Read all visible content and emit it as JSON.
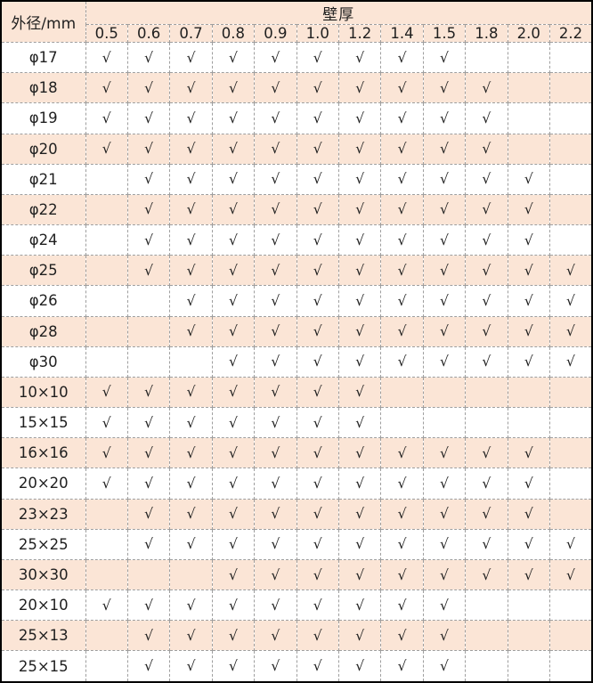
{
  "table": {
    "corner_label": "外径/mm",
    "group_label": "壁厚",
    "check_glyph": "√",
    "thickness_columns": [
      "0.5",
      "0.6",
      "0.7",
      "0.8",
      "0.9",
      "1.0",
      "1.2",
      "1.4",
      "1.5",
      "1.8",
      "2.0",
      "2.2"
    ],
    "rows": [
      {
        "label": "φ17",
        "checks": [
          1,
          1,
          1,
          1,
          1,
          1,
          1,
          1,
          1,
          0,
          0,
          0
        ]
      },
      {
        "label": "φ18",
        "checks": [
          1,
          1,
          1,
          1,
          1,
          1,
          1,
          1,
          1,
          1,
          0,
          0
        ]
      },
      {
        "label": "φ19",
        "checks": [
          1,
          1,
          1,
          1,
          1,
          1,
          1,
          1,
          1,
          1,
          0,
          0
        ]
      },
      {
        "label": "φ20",
        "checks": [
          1,
          1,
          1,
          1,
          1,
          1,
          1,
          1,
          1,
          1,
          0,
          0
        ]
      },
      {
        "label": "φ21",
        "checks": [
          0,
          1,
          1,
          1,
          1,
          1,
          1,
          1,
          1,
          1,
          1,
          0
        ]
      },
      {
        "label": "φ22",
        "checks": [
          0,
          1,
          1,
          1,
          1,
          1,
          1,
          1,
          1,
          1,
          1,
          0
        ]
      },
      {
        "label": "φ24",
        "checks": [
          0,
          1,
          1,
          1,
          1,
          1,
          1,
          1,
          1,
          1,
          1,
          0
        ]
      },
      {
        "label": "φ25",
        "checks": [
          0,
          1,
          1,
          1,
          1,
          1,
          1,
          1,
          1,
          1,
          1,
          1
        ]
      },
      {
        "label": "φ26",
        "checks": [
          0,
          0,
          1,
          1,
          1,
          1,
          1,
          1,
          1,
          1,
          1,
          1
        ]
      },
      {
        "label": "φ28",
        "checks": [
          0,
          0,
          1,
          1,
          1,
          1,
          1,
          1,
          1,
          1,
          1,
          1
        ]
      },
      {
        "label": "φ30",
        "checks": [
          0,
          0,
          0,
          1,
          1,
          1,
          1,
          1,
          1,
          1,
          1,
          1
        ]
      },
      {
        "label": "10×10",
        "checks": [
          1,
          1,
          1,
          1,
          1,
          1,
          1,
          0,
          0,
          0,
          0,
          0
        ]
      },
      {
        "label": "15×15",
        "checks": [
          1,
          1,
          1,
          1,
          1,
          1,
          1,
          0,
          0,
          0,
          0,
          0
        ]
      },
      {
        "label": "16×16",
        "checks": [
          1,
          1,
          1,
          1,
          1,
          1,
          1,
          1,
          1,
          1,
          1,
          0
        ]
      },
      {
        "label": "20×20",
        "checks": [
          1,
          1,
          1,
          1,
          1,
          1,
          1,
          1,
          1,
          1,
          1,
          0
        ]
      },
      {
        "label": "23×23",
        "checks": [
          0,
          1,
          1,
          1,
          1,
          1,
          1,
          1,
          1,
          1,
          1,
          0
        ]
      },
      {
        "label": "25×25",
        "checks": [
          0,
          1,
          1,
          1,
          1,
          1,
          1,
          1,
          1,
          1,
          1,
          1
        ]
      },
      {
        "label": "30×30",
        "checks": [
          0,
          0,
          0,
          1,
          1,
          1,
          1,
          1,
          1,
          1,
          1,
          1
        ]
      },
      {
        "label": "20×10",
        "checks": [
          1,
          1,
          1,
          1,
          1,
          1,
          1,
          1,
          1,
          0,
          0,
          0
        ]
      },
      {
        "label": "25×13",
        "checks": [
          0,
          1,
          1,
          1,
          1,
          1,
          1,
          1,
          1,
          0,
          0,
          0
        ]
      },
      {
        "label": "25×15",
        "checks": [
          0,
          1,
          1,
          1,
          1,
          1,
          1,
          1,
          1,
          0,
          0,
          0
        ]
      }
    ],
    "colors": {
      "stripe": "#FBE5D6",
      "header_bg": "#FBE5D6",
      "grid_line": "#9e9e9e",
      "outer_border": "#000000",
      "text": "#1f1f1f"
    }
  }
}
